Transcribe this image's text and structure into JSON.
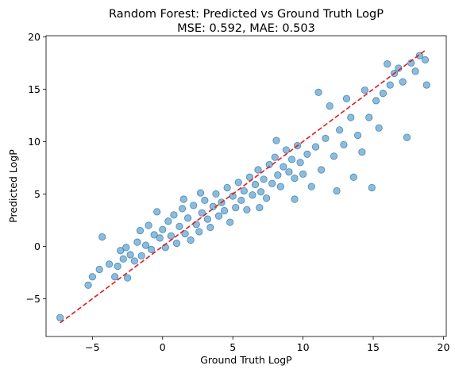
{
  "chart_data": {
    "type": "scatter",
    "title": "Random Forest: Predicted vs Ground Truth LogP",
    "subtitle": "MSE: 0.592, MAE: 0.503",
    "xlabel": "Ground Truth LogP",
    "ylabel": "Predicted LogP",
    "xlim": [
      -8.3,
      20.2
    ],
    "ylim": [
      -8.6,
      20.1
    ],
    "x_ticks": [
      -5,
      0,
      5,
      10,
      15,
      20
    ],
    "y_ticks": [
      -5,
      0,
      5,
      10,
      15,
      20
    ],
    "x_tick_labels": [
      "−5",
      "0",
      "5",
      "10",
      "15",
      "20"
    ],
    "y_tick_labels": [
      "−5",
      "0",
      "5",
      "10",
      "15",
      "20"
    ],
    "grid": false,
    "reference_line": {
      "x": [
        -7.3,
        18.7
      ],
      "y": [
        -7.3,
        18.7
      ],
      "style": "dashed",
      "color": "#e41a1c"
    },
    "point_color": "#1f77b4",
    "point_opacity": 0.5,
    "series": [
      {
        "points": [
          [
            -7.3,
            -6.8
          ],
          [
            -5.3,
            -3.7
          ],
          [
            -5.0,
            -2.9
          ],
          [
            -4.5,
            -2.2
          ],
          [
            -4.3,
            0.9
          ],
          [
            -3.8,
            -1.7
          ],
          [
            -3.4,
            -2.9
          ],
          [
            -3.2,
            -1.9
          ],
          [
            -3.0,
            -0.4
          ],
          [
            -2.8,
            -1.2
          ],
          [
            -2.6,
            -0.1
          ],
          [
            -2.5,
            -3.0
          ],
          [
            -2.3,
            -0.8
          ],
          [
            -2.0,
            -1.4
          ],
          [
            -1.8,
            0.4
          ],
          [
            -1.6,
            1.5
          ],
          [
            -1.5,
            -0.9
          ],
          [
            -1.2,
            0.1
          ],
          [
            -1.0,
            2.0
          ],
          [
            -0.8,
            -0.3
          ],
          [
            -0.6,
            1.1
          ],
          [
            -0.4,
            3.3
          ],
          [
            -0.2,
            0.8
          ],
          [
            0.0,
            1.6
          ],
          [
            0.2,
            -0.1
          ],
          [
            0.4,
            2.4
          ],
          [
            0.6,
            1.0
          ],
          [
            0.8,
            3.0
          ],
          [
            1.0,
            0.3
          ],
          [
            1.2,
            1.9
          ],
          [
            1.4,
            3.6
          ],
          [
            1.6,
            1.2
          ],
          [
            1.8,
            2.7
          ],
          [
            2.0,
            0.6
          ],
          [
            2.2,
            3.9
          ],
          [
            2.4,
            2.1
          ],
          [
            2.6,
            1.4
          ],
          [
            2.8,
            3.2
          ],
          [
            3.0,
            4.4
          ],
          [
            3.2,
            2.6
          ],
          [
            3.4,
            1.8
          ],
          [
            3.6,
            3.8
          ],
          [
            3.8,
            5.0
          ],
          [
            4.0,
            2.9
          ],
          [
            4.2,
            4.2
          ],
          [
            4.4,
            3.4
          ],
          [
            4.6,
            5.6
          ],
          [
            4.8,
            2.3
          ],
          [
            5.0,
            4.8
          ],
          [
            5.2,
            3.7
          ],
          [
            5.4,
            6.1
          ],
          [
            5.6,
            4.4
          ],
          [
            5.8,
            5.3
          ],
          [
            6.0,
            3.5
          ],
          [
            6.2,
            6.6
          ],
          [
            6.4,
            4.9
          ],
          [
            6.6,
            5.9
          ],
          [
            6.8,
            7.3
          ],
          [
            7.0,
            5.2
          ],
          [
            7.2,
            6.4
          ],
          [
            7.4,
            4.6
          ],
          [
            7.6,
            7.8
          ],
          [
            7.8,
            6.0
          ],
          [
            8.0,
            8.5
          ],
          [
            8.2,
            6.8
          ],
          [
            8.4,
            5.7
          ],
          [
            8.6,
            7.6
          ],
          [
            8.8,
            9.2
          ],
          [
            9.0,
            7.1
          ],
          [
            9.2,
            8.3
          ],
          [
            9.4,
            6.5
          ],
          [
            9.6,
            9.6
          ],
          [
            9.8,
            8.0
          ],
          [
            10.0,
            6.9
          ],
          [
            10.3,
            8.8
          ],
          [
            10.6,
            5.7
          ],
          [
            10.9,
            9.5
          ],
          [
            11.1,
            14.7
          ],
          [
            11.3,
            7.3
          ],
          [
            11.6,
            10.3
          ],
          [
            11.9,
            13.4
          ],
          [
            12.2,
            8.6
          ],
          [
            12.4,
            5.3
          ],
          [
            12.6,
            11.1
          ],
          [
            12.9,
            9.7
          ],
          [
            13.1,
            14.1
          ],
          [
            13.4,
            12.3
          ],
          [
            13.6,
            6.6
          ],
          [
            13.9,
            10.6
          ],
          [
            14.2,
            9.0
          ],
          [
            14.4,
            14.9
          ],
          [
            14.7,
            12.3
          ],
          [
            14.9,
            5.6
          ],
          [
            15.2,
            13.9
          ],
          [
            15.4,
            11.3
          ],
          [
            15.7,
            14.6
          ],
          [
            16.0,
            17.4
          ],
          [
            16.2,
            15.4
          ],
          [
            16.5,
            16.5
          ],
          [
            16.8,
            17.0
          ],
          [
            17.1,
            15.7
          ],
          [
            17.4,
            10.4
          ],
          [
            17.7,
            17.5
          ],
          [
            18.0,
            16.7
          ],
          [
            18.3,
            18.2
          ],
          [
            18.7,
            17.8
          ],
          [
            18.8,
            15.4
          ],
          [
            1.5,
            4.5
          ],
          [
            2.7,
            5.1
          ],
          [
            6.9,
            3.7
          ],
          [
            9.4,
            4.5
          ],
          [
            8.1,
            10.1
          ]
        ]
      }
    ]
  }
}
